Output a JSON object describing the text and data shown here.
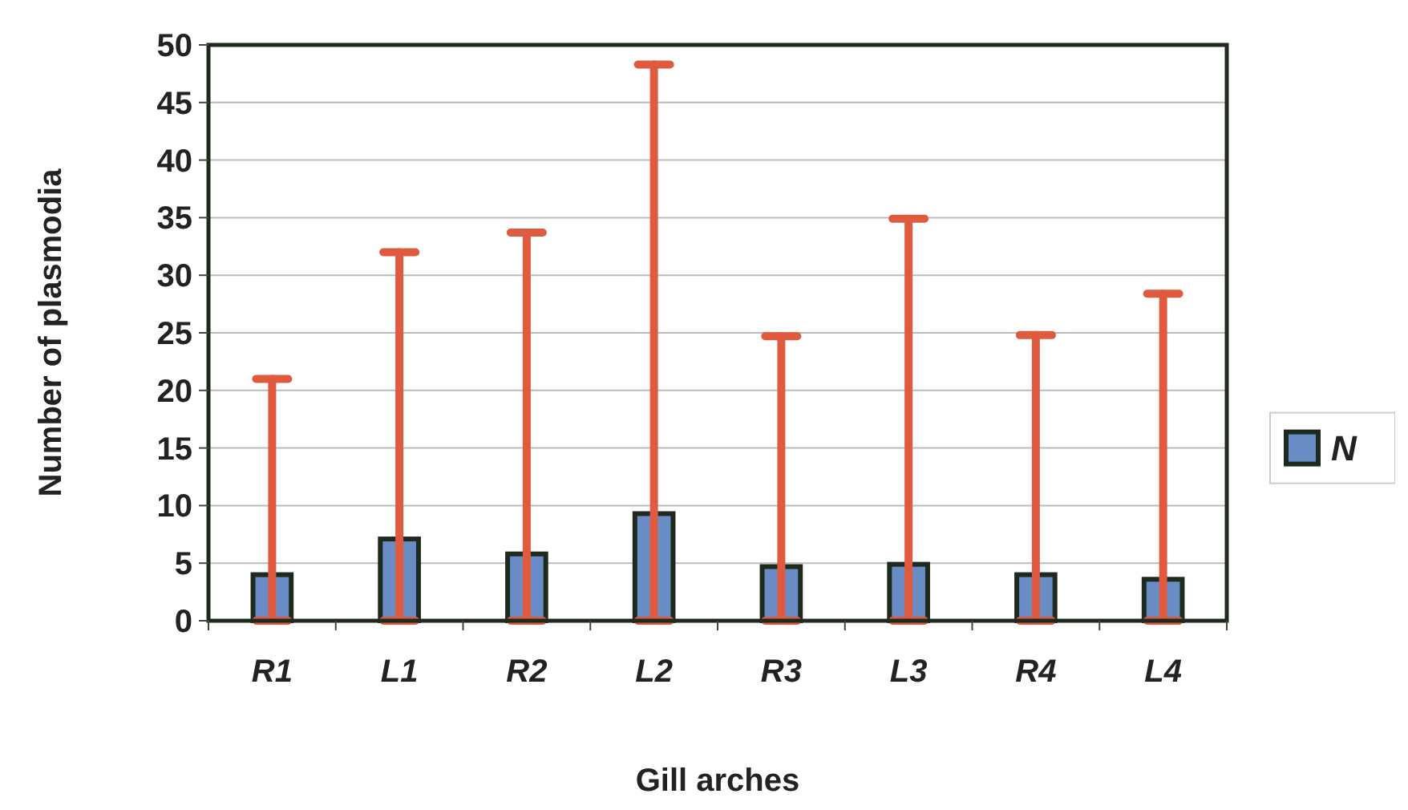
{
  "chart_data": {
    "type": "bar",
    "xlabel": "Gill arches",
    "ylabel": "Number of plasmodia",
    "categories": [
      "R1",
      "L1",
      "R2",
      "L2",
      "R3",
      "L3",
      "R4",
      "L4"
    ],
    "series": [
      {
        "name": "N",
        "color": "#6a8cc4",
        "values": [
          4.0,
          7.1,
          5.8,
          9.3,
          4.7,
          4.9,
          4.0,
          3.6
        ],
        "errors": [
          [
            0,
            21
          ],
          [
            0,
            32
          ],
          [
            0,
            33.7
          ],
          [
            0,
            48.3
          ],
          [
            0,
            24.7
          ],
          [
            0,
            34.9
          ],
          [
            0,
            24.8
          ],
          [
            0,
            28.4
          ]
        ]
      }
    ],
    "ylim": [
      0,
      50
    ],
    "yticks": [
      0,
      5,
      10,
      15,
      20,
      25,
      30,
      35,
      40,
      45,
      50
    ],
    "grid": "y",
    "legend": "right"
  }
}
